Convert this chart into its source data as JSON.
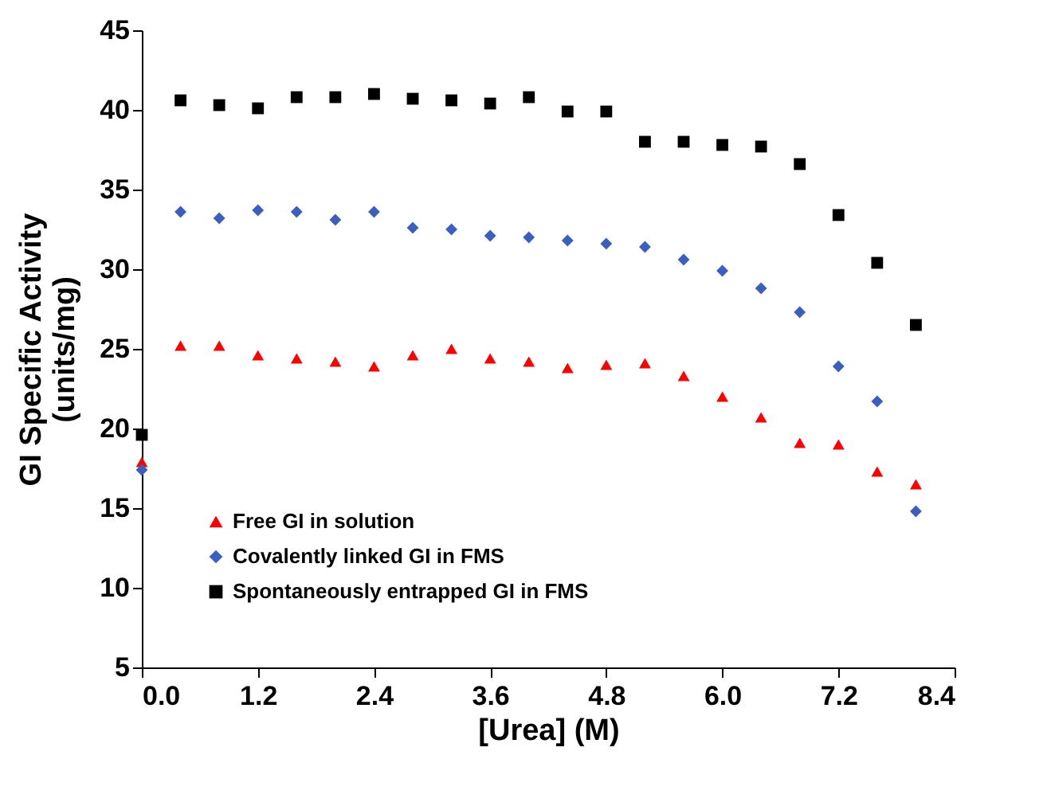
{
  "chart_data": {
    "type": "scatter",
    "xlabel": "[Urea] (M)",
    "ylabel": "GI Specific Activity\n(units/mg)",
    "x": [
      0,
      0.4,
      0.8,
      1.2,
      1.6,
      2.0,
      2.4,
      2.8,
      3.2,
      3.6,
      4.0,
      4.4,
      4.8,
      5.2,
      5.6,
      6.0,
      6.4,
      6.8,
      7.2,
      7.6,
      8.0
    ],
    "xlim": [
      0,
      8.4
    ],
    "xticks": [
      {
        "value": 0,
        "label": "0.0"
      },
      1.2,
      2.4,
      3.6,
      4.8,
      {
        "value": 6,
        "label": "6.0"
      },
      7.2,
      8.4
    ],
    "ylim": [
      5,
      45
    ],
    "yticks": [
      5,
      10,
      15,
      20,
      25,
      30,
      35,
      40,
      45
    ],
    "grid": false,
    "legend": "bottom left",
    "series": [
      {
        "name": "Free GI in solution",
        "color": "#ff0000",
        "marker": "triangle",
        "values": [
          17.9,
          25.2,
          25.2,
          24.6,
          24.4,
          24.2,
          23.9,
          24.6,
          25.0,
          24.4,
          24.2,
          23.8,
          24.0,
          24.1,
          23.3,
          22.0,
          20.7,
          19.1,
          19.0,
          17.3,
          16.5
        ]
      },
      {
        "name": "Covalently linked GI in FMS",
        "color": "#3a5fc0",
        "marker": "diamond",
        "values": [
          17.4,
          33.6,
          33.2,
          33.7,
          33.6,
          33.1,
          33.6,
          32.6,
          32.5,
          32.1,
          32.0,
          31.8,
          31.6,
          31.4,
          30.6,
          29.9,
          28.8,
          27.3,
          23.9,
          21.7,
          14.8
        ]
      },
      {
        "name": "Spontaneously entrapped GI in FMS",
        "color": "#000000",
        "marker": "square",
        "values": [
          19.6,
          40.6,
          40.3,
          40.1,
          40.8,
          40.8,
          41.0,
          40.7,
          40.6,
          40.4,
          40.8,
          39.9,
          39.9,
          38.0,
          38.0,
          37.8,
          37.7,
          36.6,
          33.4,
          30.4,
          26.5
        ]
      }
    ]
  }
}
